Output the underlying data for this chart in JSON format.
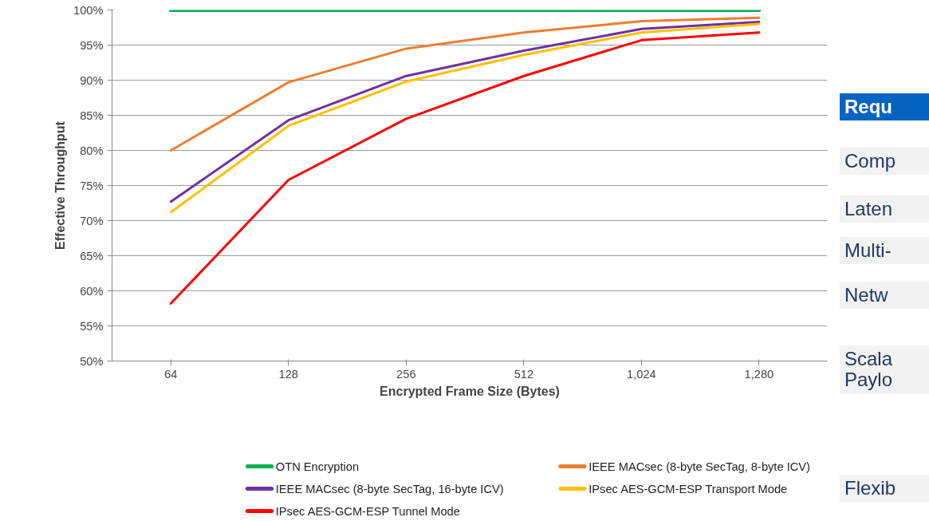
{
  "chart_data": {
    "type": "line",
    "xlabel": "Encrypted Frame Size (Bytes)",
    "ylabel": "Effective Throughput",
    "categories": [
      "64",
      "128",
      "256",
      "512",
      "1,024",
      "1,280"
    ],
    "ylim": [
      50,
      100
    ],
    "yticks": [
      {
        "value": 50,
        "label": "50%"
      },
      {
        "value": 55,
        "label": "55%"
      },
      {
        "value": 60,
        "label": "60%"
      },
      {
        "value": 65,
        "label": "65%"
      },
      {
        "value": 70,
        "label": "70%"
      },
      {
        "value": 75,
        "label": "75%"
      },
      {
        "value": 80,
        "label": "80%"
      },
      {
        "value": 85,
        "label": "85%"
      },
      {
        "value": 90,
        "label": "90%"
      },
      {
        "value": 95,
        "label": "95%"
      },
      {
        "value": 100,
        "label": "100%"
      }
    ],
    "grid": "y",
    "legend": "bottom",
    "marker": "none",
    "line_style": "solid",
    "series": [
      {
        "name": "OTN Encryption",
        "color": "#00b050",
        "values": [
          100,
          100,
          100,
          100,
          100,
          100
        ]
      },
      {
        "name": "IEEE MACsec (8-byte SecTag, 8-byte ICV)",
        "color": "#ed7d31",
        "values": [
          80,
          89.7,
          94.5,
          96.8,
          98.4,
          98.9
        ]
      },
      {
        "name": "IEEE MACsec (8-byte SecTag, 16-byte ICV)",
        "color": "#7030a0",
        "values": [
          72.7,
          84.3,
          90.6,
          94.2,
          97.3,
          98.3
        ]
      },
      {
        "name": "IPsec AES-GCM-ESP Transport Mode",
        "color": "#ffc000",
        "values": [
          71.2,
          83.5,
          89.8,
          93.6,
          96.8,
          98.0
        ]
      },
      {
        "name": "IPsec AES-GCM-ESP Tunnel Mode",
        "color": "#ff0000",
        "values": [
          58.2,
          75.8,
          84.5,
          90.6,
          95.7,
          96.8
        ]
      }
    ],
    "annotations": [
      "Requ",
      "Comp",
      "Laten",
      "Multi-",
      "Netw",
      "Scala\nPaylo",
      "Flexib"
    ]
  }
}
